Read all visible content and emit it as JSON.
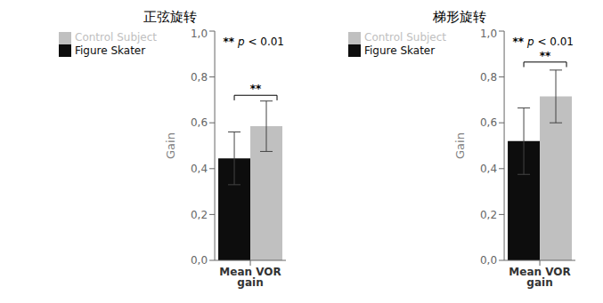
{
  "chart_data": [
    {
      "type": "bar",
      "title": "正弦旋转",
      "categories": [
        "Mean VOR gain"
      ],
      "ylabel": "Gain",
      "series": [
        {
          "name": "Figure Skater",
          "color": "#0d0d0d",
          "values": [
            0.445
          ],
          "errors": [
            0.115
          ]
        },
        {
          "name": "Control Subject",
          "color": "#c0c0c0",
          "values": [
            0.585
          ],
          "errors": [
            0.11
          ]
        }
      ],
      "ylim": [
        0,
        1.0
      ],
      "yticks": [
        {
          "value": 0.0,
          "label": "0,0"
        },
        {
          "value": 0.2,
          "label": "0,2"
        },
        {
          "value": 0.4,
          "label": "0,4"
        },
        {
          "value": 0.6,
          "label": "0,6"
        },
        {
          "value": 0.8,
          "label": "0,8"
        },
        {
          "value": 1.0,
          "label": "1,0"
        }
      ],
      "bracket": {
        "label": "**",
        "y": 0.72
      },
      "annotation": "** p < 0.01",
      "legend": "upper left",
      "grid": false
    },
    {
      "type": "bar",
      "title": "梯形旋转",
      "categories": [
        "Mean VOR gain"
      ],
      "ylabel": "Gain",
      "series": [
        {
          "name": "Figure Skater",
          "color": "#0d0d0d",
          "values": [
            0.52
          ],
          "errors": [
            0.145
          ]
        },
        {
          "name": "Control Subject",
          "color": "#c0c0c0",
          "values": [
            0.715
          ],
          "errors": [
            0.115
          ]
        }
      ],
      "ylim": [
        0,
        1.0
      ],
      "yticks": [
        {
          "value": 0.0,
          "label": "0,0"
        },
        {
          "value": 0.2,
          "label": "0,2"
        },
        {
          "value": 0.4,
          "label": "0,4"
        },
        {
          "value": 0.6,
          "label": "0,6"
        },
        {
          "value": 0.8,
          "label": "0,8"
        },
        {
          "value": 1.0,
          "label": "1,0"
        }
      ],
      "bracket": {
        "label": "**",
        "y": 0.865
      },
      "annotation": "** p < 0.01",
      "legend": "upper left",
      "grid": false
    }
  ]
}
